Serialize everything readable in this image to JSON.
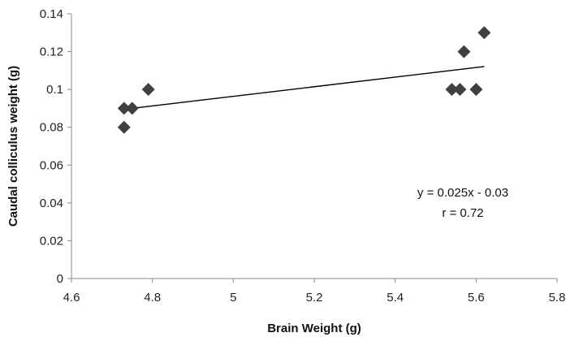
{
  "chart_data": {
    "type": "scatter",
    "title": "",
    "xlabel": "Brain Weight (g)",
    "ylabel": "Caudal colliculus weight (g)",
    "xlim": [
      4.6,
      5.8
    ],
    "ylim": [
      0,
      0.14
    ],
    "x_ticks": [
      4.6,
      4.8,
      5,
      5.2,
      5.4,
      5.6,
      5.8
    ],
    "x_tick_labels": [
      "4.6",
      "4.8",
      "5",
      "5.2",
      "5.4",
      "5.6",
      "5.8"
    ],
    "y_ticks": [
      0,
      0.02,
      0.04,
      0.06,
      0.08,
      0.1,
      0.12,
      0.14
    ],
    "y_tick_labels": [
      "0",
      "0.02",
      "0.04",
      "0.06",
      "0.08",
      "0.1",
      "0.12",
      "0.14"
    ],
    "grid": false,
    "legend": "none",
    "marker": "diamond",
    "marker_color": "#404040",
    "line_color": "#000000",
    "series": [
      {
        "x": [
          4.73,
          4.73,
          4.75,
          4.79,
          5.54,
          5.56,
          5.57,
          5.6,
          5.62
        ],
        "y": [
          0.08,
          0.09,
          0.09,
          0.1,
          0.1,
          0.1,
          0.12,
          0.1,
          0.13
        ]
      }
    ],
    "trendline": {
      "x": [
        4.73,
        5.62
      ],
      "y": [
        0.0895,
        0.1121
      ]
    },
    "annotations": [
      "y = 0.025x - 0.03",
      "r = 0.72"
    ]
  }
}
